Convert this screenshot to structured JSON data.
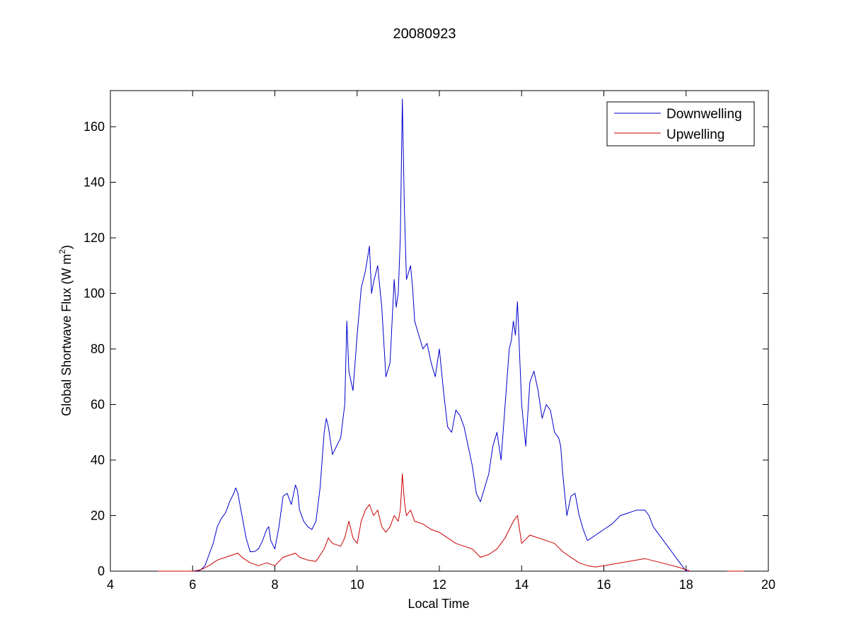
{
  "chart_data": {
    "type": "line",
    "title": "20080923",
    "xlabel": "Local Time",
    "ylabel": "Global Shortwave Flux (W m",
    "ylabel_sup": "2",
    "ylabel_close": ")",
    "xlim": [
      4,
      20
    ],
    "ylim": [
      0,
      173
    ],
    "xticks": [
      4,
      6,
      8,
      10,
      12,
      14,
      16,
      18,
      20
    ],
    "yticks": [
      0,
      20,
      40,
      60,
      80,
      100,
      120,
      140,
      160
    ],
    "grid": false,
    "legend_position": "top-right",
    "series": [
      {
        "name": "Downwelling",
        "color": "#0000cc",
        "x": [
          5.15,
          5.25,
          5.7,
          6.0,
          6.1,
          6.2,
          6.3,
          6.4,
          6.5,
          6.6,
          6.7,
          6.8,
          6.9,
          7.0,
          7.05,
          7.1,
          7.2,
          7.3,
          7.4,
          7.5,
          7.6,
          7.7,
          7.8,
          7.85,
          7.9,
          8.0,
          8.1,
          8.2,
          8.3,
          8.4,
          8.5,
          8.55,
          8.6,
          8.7,
          8.8,
          8.9,
          9.0,
          9.1,
          9.2,
          9.25,
          9.3,
          9.4,
          9.5,
          9.6,
          9.7,
          9.75,
          9.8,
          9.9,
          10.0,
          10.1,
          10.2,
          10.3,
          10.35,
          10.4,
          10.5,
          10.6,
          10.7,
          10.8,
          10.9,
          10.95,
          11.0,
          11.05,
          11.1,
          11.15,
          11.2,
          11.3,
          11.35,
          11.4,
          11.5,
          11.6,
          11.7,
          11.8,
          11.9,
          12.0,
          12.1,
          12.2,
          12.3,
          12.4,
          12.5,
          12.6,
          12.7,
          12.8,
          12.9,
          13.0,
          13.1,
          13.2,
          13.3,
          13.4,
          13.5,
          13.6,
          13.7,
          13.75,
          13.8,
          13.85,
          13.9,
          14.0,
          14.1,
          14.2,
          14.3,
          14.4,
          14.5,
          14.6,
          14.7,
          14.8,
          14.9,
          14.95,
          15.0,
          15.1,
          15.2,
          15.3,
          15.4,
          15.5,
          15.6,
          15.7,
          15.8,
          15.9,
          16.0,
          16.2,
          16.4,
          16.6,
          16.8,
          17.0,
          17.1,
          17.2,
          17.3,
          17.4,
          17.5,
          17.6,
          17.7,
          17.8,
          17.9,
          18.0,
          18.1
        ],
        "y": [
          0,
          0,
          0,
          0,
          0,
          0.5,
          2,
          6,
          10,
          16,
          19,
          21,
          25,
          28,
          30,
          28,
          20,
          12,
          7,
          7,
          8,
          11,
          15,
          16,
          11,
          8,
          16,
          27,
          28,
          24,
          31,
          29,
          22,
          18,
          16,
          15,
          18,
          30,
          50,
          55,
          52,
          42,
          45,
          48,
          60,
          90,
          72,
          65,
          85,
          102,
          108,
          117,
          100,
          104,
          110,
          95,
          70,
          75,
          105,
          95,
          100,
          120,
          170,
          130,
          105,
          110,
          102,
          90,
          85,
          80,
          82,
          75,
          70,
          80,
          65,
          52,
          50,
          58,
          56,
          52,
          45,
          38,
          28,
          25,
          30,
          35,
          45,
          50,
          40,
          60,
          80,
          83,
          90,
          85,
          97,
          60,
          45,
          68,
          72,
          65,
          55,
          60,
          58,
          50,
          48,
          45,
          35,
          20,
          27,
          28,
          20,
          15,
          11,
          12,
          13,
          14,
          15,
          17,
          20,
          21,
          22,
          22,
          20,
          16,
          14,
          12,
          10,
          8,
          6,
          4,
          2,
          0,
          0
        ]
      },
      {
        "name": "Upwelling",
        "color": "#cc0000",
        "x": [
          5.15,
          5.25,
          5.7,
          6.0,
          6.2,
          6.4,
          6.6,
          6.8,
          7.0,
          7.1,
          7.2,
          7.4,
          7.6,
          7.8,
          7.9,
          8.0,
          8.2,
          8.4,
          8.5,
          8.6,
          8.8,
          9.0,
          9.2,
          9.3,
          9.4,
          9.6,
          9.7,
          9.8,
          9.9,
          10.0,
          10.1,
          10.2,
          10.3,
          10.4,
          10.5,
          10.6,
          10.7,
          10.8,
          10.9,
          11.0,
          11.05,
          11.1,
          11.15,
          11.2,
          11.3,
          11.4,
          11.6,
          11.8,
          12.0,
          12.2,
          12.4,
          12.6,
          12.8,
          13.0,
          13.2,
          13.4,
          13.6,
          13.8,
          13.9,
          14.0,
          14.2,
          14.4,
          14.6,
          14.8,
          15.0,
          15.2,
          15.4,
          15.6,
          15.8,
          16.0,
          16.4,
          16.8,
          17.0,
          17.4,
          17.8,
          18.0,
          18.1
        ],
        "y": [
          0,
          0,
          0,
          0,
          0.5,
          2,
          4,
          5,
          6,
          6.5,
          5,
          3,
          2,
          3,
          2.5,
          2,
          5,
          6,
          6.5,
          5,
          4,
          3.5,
          8,
          12,
          10,
          9,
          12,
          18,
          12,
          10,
          18,
          22,
          24,
          20,
          22,
          16,
          14,
          16,
          20,
          18,
          22,
          35,
          25,
          20,
          22,
          18,
          17,
          15,
          14,
          12,
          10,
          9,
          8,
          5,
          6,
          8,
          12,
          18,
          20,
          10,
          13,
          12,
          11,
          10,
          7,
          5,
          3,
          2,
          1.5,
          2,
          3,
          4,
          4.5,
          3,
          1.5,
          0.5,
          0
        ]
      },
      {
        "name": "",
        "color": "#0000cc",
        "x": [
          19.0,
          19.4
        ],
        "y": [
          0,
          0
        ]
      },
      {
        "name": "",
        "color": "#cc0000",
        "x": [
          19.0,
          19.4
        ],
        "y": [
          0,
          0
        ]
      }
    ]
  }
}
